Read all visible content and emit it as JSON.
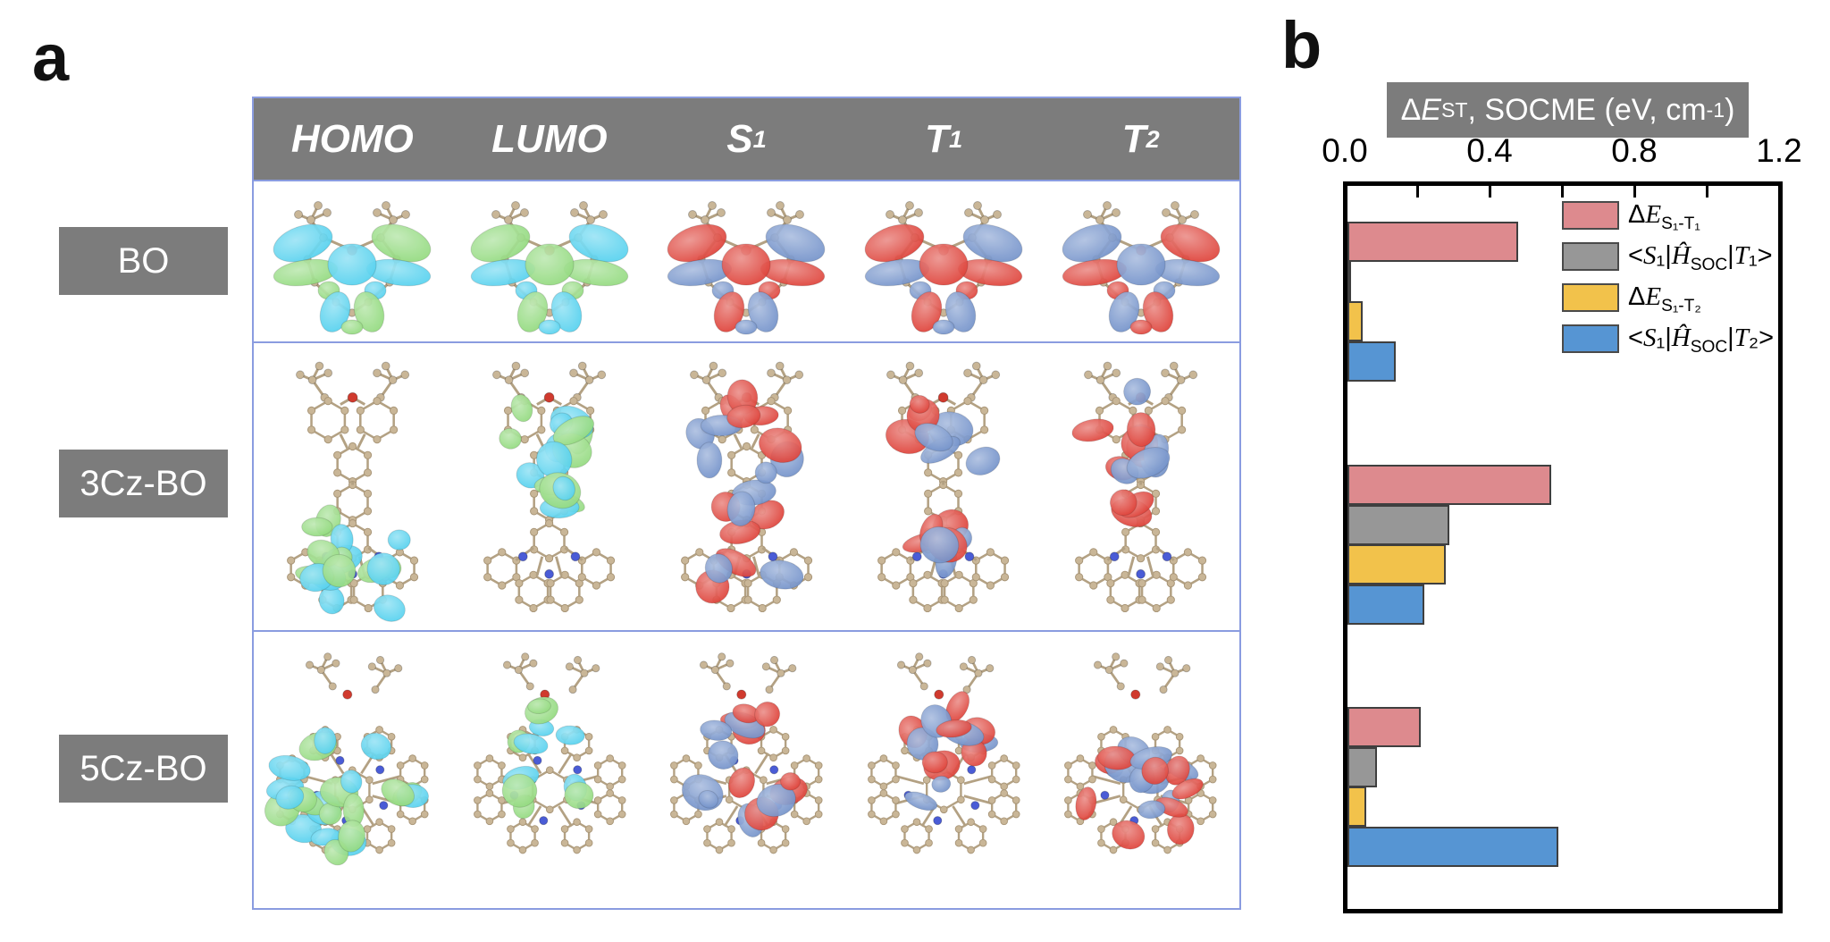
{
  "panels": {
    "a": "a",
    "b": "b"
  },
  "orbital_table": {
    "header": [
      "*HOMO*",
      "*LUMO*",
      "*S*_{1}",
      "*T*_{1}",
      "*T*_{2}"
    ],
    "rows": [
      {
        "label": "BO",
        "cells": [
          {
            "name": "BO-HOMO-isosurface",
            "shape": "bo",
            "palette": "homo"
          },
          {
            "name": "BO-LUMO-isosurface",
            "shape": "bo",
            "palette": "lumo"
          },
          {
            "name": "BO-S1-isosurface",
            "shape": "bo",
            "palette": "exc"
          },
          {
            "name": "BO-T1-isosurface",
            "shape": "bo",
            "palette": "exc"
          },
          {
            "name": "BO-T2-isosurface",
            "shape": "bo",
            "palette": "exc2"
          }
        ]
      },
      {
        "label": "3Cz-BO",
        "cells": [
          {
            "name": "3Cz-BO-HOMO-isosurface",
            "shape": "cz3-homo",
            "palette": "homo"
          },
          {
            "name": "3Cz-BO-LUMO-isosurface",
            "shape": "cz3-lumo",
            "palette": "lumo"
          },
          {
            "name": "3Cz-BO-S1-isosurface",
            "shape": "cz3-s1",
            "palette": "exc"
          },
          {
            "name": "3Cz-BO-T1-isosurface",
            "shape": "cz3-t1",
            "palette": "exc"
          },
          {
            "name": "3Cz-BO-T2-isosurface",
            "shape": "cz3-t2",
            "palette": "exc"
          }
        ]
      },
      {
        "label": "5Cz-BO",
        "cells": [
          {
            "name": "5Cz-BO-HOMO-isosurface",
            "shape": "cz5-homo",
            "palette": "homo"
          },
          {
            "name": "5Cz-BO-LUMO-isosurface",
            "shape": "cz5-lumo",
            "palette": "lumo"
          },
          {
            "name": "5Cz-BO-S1-isosurface",
            "shape": "cz5-s1",
            "palette": "exc"
          },
          {
            "name": "5Cz-BO-T1-isosurface",
            "shape": "cz5-t1",
            "palette": "exc"
          },
          {
            "name": "5Cz-BO-T2-isosurface",
            "shape": "cz5-t2",
            "palette": "exc2"
          }
        ]
      }
    ]
  },
  "chart_data": {
    "type": "bar",
    "orientation": "horizontal",
    "title": "Δ*E*_{ST}, SOCME (eV, cm^{-1})",
    "x_axis": {
      "position": "top",
      "range": [
        0,
        1.21
      ],
      "tick_labels": [
        "0.0",
        "0.4",
        "0.8",
        "1.2"
      ],
      "tick_values": [
        0.0,
        0.4,
        0.8,
        1.2
      ],
      "minor_tick_step": 0.2
    },
    "categories": [
      "BO",
      "3Cz-BO",
      "5Cz-BO"
    ],
    "series": [
      {
        "name": "Δ*E*_{S₁-T₁}",
        "color": "#dd8a8e",
        "values": [
          0.48,
          0.57,
          0.21
        ]
      },
      {
        "name": "<*S*₁|*Ĥ*_{SOC}|*T*₁>",
        "color": "#979797",
        "values": [
          0.01,
          0.29,
          0.09
        ]
      },
      {
        "name": "Δ*E*_{S₁-T₂}",
        "color": "#f2c24b",
        "values": [
          0.05,
          0.28,
          0.06
        ]
      },
      {
        "name": "<*S*₁|*Ĥ*_{SOC}|*T*₂>",
        "color": "#5695d3",
        "values": [
          0.14,
          0.22,
          0.59
        ]
      }
    ],
    "legend_position": "top-right",
    "grid": false,
    "units": "eV, cm⁻¹"
  },
  "colors": {
    "panel_gray": "#7c7c7c",
    "table_border": "#8a9ce0",
    "bar_edge": "#3f3f3f",
    "frame_black": "#000000",
    "lobe_green": "#8fd97a",
    "lobe_cyan": "#4fd0ee",
    "lobe_red": "#dd3a31",
    "lobe_blue": "#6e8ec8",
    "skeleton_tan": "#c9b697",
    "skeleton_bond": "#b3a183",
    "nitrogen_blue": "#4a5cd6",
    "oxygen_red": "#d03a2e"
  }
}
